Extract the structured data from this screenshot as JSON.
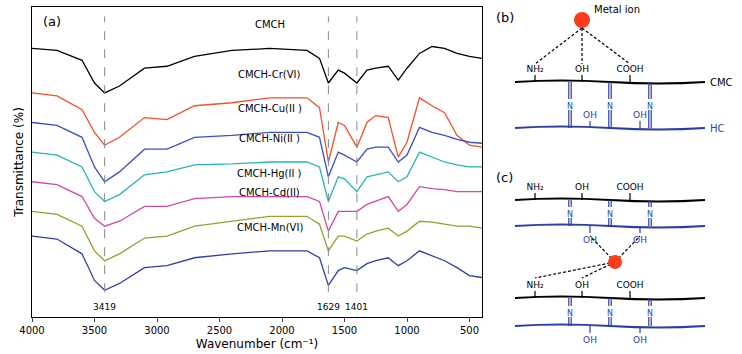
{
  "chart_data": {
    "type": "line",
    "panel_label": "(a)",
    "xlabel": "Wavenumber (cm⁻¹)",
    "ylabel": "Transmittance (%)",
    "x": [
      4000,
      3800,
      3600,
      3500,
      3419,
      3300,
      3100,
      2920,
      2700,
      2400,
      2100,
      1800,
      1700,
      1629,
      1550,
      1500,
      1401,
      1320,
      1250,
      1150,
      1070,
      1000,
      900,
      800,
      700,
      600,
      500,
      400
    ],
    "series": [
      {
        "name": "CMCH",
        "color": "#000000",
        "values": [
          280,
          278,
          268,
          245,
          235,
          242,
          260,
          262,
          272,
          278,
          280,
          278,
          270,
          245,
          258,
          255,
          245,
          258,
          260,
          262,
          248,
          260,
          275,
          282,
          280,
          275,
          272,
          270
        ]
      },
      {
        "name": "CMCH-Cr(VI)",
        "color": "#f0502a",
        "values": [
          235,
          232,
          218,
          195,
          182,
          190,
          210,
          208,
          222,
          225,
          230,
          230,
          220,
          165,
          205,
          202,
          180,
          205,
          212,
          210,
          170,
          185,
          230,
          222,
          215,
          192,
          182,
          180
        ]
      },
      {
        "name": "CMCH-Cu(II )",
        "color": "#3a4fc0",
        "values": [
          205,
          202,
          190,
          160,
          145,
          155,
          178,
          178,
          190,
          192,
          195,
          195,
          190,
          150,
          175,
          172,
          165,
          178,
          180,
          180,
          165,
          172,
          200,
          195,
          192,
          188,
          185,
          184
        ]
      },
      {
        "name": "CMCH-Ni(II )",
        "color": "#2ab3b3",
        "values": [
          175,
          172,
          160,
          135,
          125,
          132,
          152,
          155,
          162,
          163,
          165,
          165,
          160,
          125,
          150,
          148,
          135,
          150,
          152,
          155,
          145,
          150,
          175,
          170,
          165,
          162,
          160,
          160
        ]
      },
      {
        "name": "CMCH-Hg(II )",
        "color": "#d04aa0",
        "values": [
          145,
          142,
          130,
          108,
          100,
          105,
          120,
          120,
          128,
          130,
          130,
          130,
          125,
          95,
          115,
          115,
          115,
          122,
          125,
          130,
          115,
          122,
          140,
          138,
          137,
          135,
          135,
          135
        ]
      },
      {
        "name": "CMCH-Cd(II)",
        "color": "#9c9c2c",
        "values": [
          115,
          112,
          100,
          75,
          65,
          72,
          88,
          90,
          100,
          105,
          110,
          110,
          102,
          75,
          90,
          90,
          85,
          92,
          95,
          98,
          90,
          95,
          105,
          104,
          102,
          100,
          100,
          98
        ]
      },
      {
        "name": "CMCH-Mn(VI)",
        "color": "#2f3fa8",
        "values": [
          90,
          87,
          72,
          45,
          35,
          42,
          58,
          60,
          68,
          72,
          75,
          75,
          68,
          40,
          55,
          58,
          55,
          62,
          65,
          68,
          60,
          65,
          75,
          70,
          65,
          58,
          50,
          48
        ]
      }
    ],
    "xlim": [
      4000,
      400
    ],
    "xticks": [
      4000,
      3500,
      3000,
      2500,
      2000,
      1500,
      1000,
      500
    ],
    "ylim": [
      8,
      322
    ],
    "tick_labels": "x",
    "grid": false,
    "reference_lines": [
      3419,
      1629,
      1401
    ]
  },
  "diagrams": [
    {
      "label": "(b)",
      "metal_ion": "Metal ion",
      "chain_labels": {
        "top": "CMC",
        "bottom": "HC"
      },
      "cmc_groups": [
        "NH₂",
        "OH",
        "COOH"
      ],
      "link": "N",
      "hc_groups": [
        "OH",
        "OH"
      ]
    },
    {
      "label": "(c)",
      "cmc_groups": [
        "NH₂",
        "OH",
        "COOH"
      ],
      "link": "N",
      "hc_groups": [
        "OH",
        "OH"
      ]
    }
  ]
}
